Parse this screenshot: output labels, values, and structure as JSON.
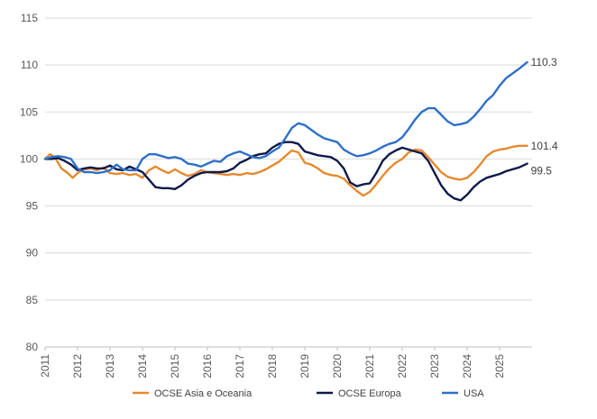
{
  "chart_data": {
    "type": "line",
    "title": "",
    "xlabel": "",
    "ylabel": "",
    "ylim": [
      80,
      115
    ],
    "xlim": [
      2011.0,
      2026.0
    ],
    "yticks": [
      "80",
      "85",
      "90",
      "95",
      "100",
      "105",
      "110",
      "115"
    ],
    "xticks": [
      "2011",
      "2012",
      "2013",
      "2014",
      "2015",
      "2016",
      "2017",
      "2018",
      "2019",
      "2020",
      "2021",
      "2022",
      "2023",
      "2024",
      "2025"
    ],
    "grid": "horizontal",
    "legend_position": "bottom",
    "series": [
      {
        "name": "OCSE Asia e Oceania",
        "color": "#e6892e",
        "end_label": "101.4",
        "x": [
          2011.0,
          2011.15,
          2011.3,
          2011.5,
          2011.7,
          2011.85,
          2012.0,
          2012.2,
          2012.4,
          2012.6,
          2012.8,
          2013.0,
          2013.2,
          2013.4,
          2013.6,
          2013.8,
          2014.0,
          2014.2,
          2014.4,
          2014.6,
          2014.8,
          2015.0,
          2015.2,
          2015.4,
          2015.6,
          2015.8,
          2016.0,
          2016.2,
          2016.4,
          2016.6,
          2016.8,
          2017.0,
          2017.2,
          2017.4,
          2017.6,
          2017.8,
          2018.0,
          2018.2,
          2018.4,
          2018.6,
          2018.8,
          2019.0,
          2019.2,
          2019.4,
          2019.6,
          2019.8,
          2020.0,
          2020.2,
          2020.4,
          2020.6,
          2020.8,
          2021.0,
          2021.2,
          2021.4,
          2021.6,
          2021.8,
          2022.0,
          2022.2,
          2022.4,
          2022.6,
          2022.8,
          2023.0,
          2023.2,
          2023.4,
          2023.6,
          2023.8,
          2024.0,
          2024.2,
          2024.4,
          2024.6,
          2024.8,
          2025.0,
          2025.2,
          2025.4,
          2025.6,
          2025.85
        ],
        "values": [
          100.0,
          100.5,
          100.2,
          99.0,
          98.5,
          98.0,
          98.5,
          98.9,
          99.0,
          98.8,
          99.1,
          98.5,
          98.4,
          98.5,
          98.3,
          98.4,
          98.0,
          98.8,
          99.2,
          98.8,
          98.5,
          98.9,
          98.5,
          98.2,
          98.4,
          98.8,
          98.6,
          98.5,
          98.4,
          98.3,
          98.4,
          98.3,
          98.5,
          98.4,
          98.6,
          98.9,
          99.3,
          99.7,
          100.3,
          100.9,
          100.7,
          99.6,
          99.4,
          99.0,
          98.5,
          98.3,
          98.2,
          97.9,
          97.2,
          96.6,
          96.1,
          96.5,
          97.3,
          98.2,
          99.0,
          99.6,
          100.0,
          100.7,
          101.0,
          100.9,
          100.2,
          99.4,
          98.6,
          98.1,
          97.9,
          97.8,
          98.0,
          98.6,
          99.4,
          100.3,
          100.8,
          101.0,
          101.1,
          101.3,
          101.4,
          101.4
        ]
      },
      {
        "name": "OCSE Europa",
        "color": "#0e1a4a",
        "end_label": "99.5",
        "x": [
          2011.0,
          2011.2,
          2011.4,
          2011.6,
          2011.8,
          2012.0,
          2012.2,
          2012.4,
          2012.6,
          2012.8,
          2013.0,
          2013.2,
          2013.4,
          2013.6,
          2013.8,
          2014.0,
          2014.2,
          2014.4,
          2014.6,
          2014.8,
          2015.0,
          2015.2,
          2015.4,
          2015.6,
          2015.8,
          2016.0,
          2016.2,
          2016.4,
          2016.6,
          2016.8,
          2017.0,
          2017.2,
          2017.4,
          2017.6,
          2017.8,
          2018.0,
          2018.2,
          2018.4,
          2018.6,
          2018.8,
          2019.0,
          2019.2,
          2019.4,
          2019.6,
          2019.8,
          2020.0,
          2020.2,
          2020.4,
          2020.6,
          2020.8,
          2021.0,
          2021.2,
          2021.4,
          2021.6,
          2021.8,
          2022.0,
          2022.2,
          2022.4,
          2022.6,
          2022.8,
          2023.0,
          2023.2,
          2023.4,
          2023.6,
          2023.8,
          2024.0,
          2024.2,
          2024.4,
          2024.6,
          2024.8,
          2025.0,
          2025.2,
          2025.4,
          2025.6,
          2025.85
        ],
        "values": [
          100.0,
          100.0,
          100.1,
          99.8,
          99.4,
          98.8,
          99.0,
          99.1,
          99.0,
          99.0,
          99.3,
          98.9,
          98.8,
          99.2,
          98.9,
          98.6,
          97.8,
          97.0,
          96.9,
          96.9,
          96.8,
          97.2,
          97.8,
          98.2,
          98.5,
          98.6,
          98.6,
          98.6,
          98.7,
          99.0,
          99.6,
          99.9,
          100.3,
          100.5,
          100.6,
          101.2,
          101.6,
          101.8,
          101.8,
          101.6,
          100.8,
          100.6,
          100.4,
          100.3,
          100.2,
          99.8,
          99.0,
          97.5,
          97.1,
          97.3,
          97.4,
          98.5,
          99.8,
          100.5,
          100.9,
          101.2,
          101.0,
          100.8,
          100.6,
          99.8,
          98.5,
          97.2,
          96.3,
          95.8,
          95.6,
          96.2,
          97.0,
          97.6,
          98.0,
          98.2,
          98.4,
          98.7,
          98.9,
          99.1,
          99.5
        ]
      },
      {
        "name": "USA",
        "color": "#2e6fc8",
        "end_label": "110.3",
        "x": [
          2011.0,
          2011.2,
          2011.4,
          2011.6,
          2011.8,
          2012.0,
          2012.2,
          2012.4,
          2012.6,
          2012.8,
          2013.0,
          2013.2,
          2013.4,
          2013.6,
          2013.8,
          2014.0,
          2014.2,
          2014.4,
          2014.6,
          2014.8,
          2015.0,
          2015.2,
          2015.4,
          2015.6,
          2015.8,
          2016.0,
          2016.2,
          2016.4,
          2016.6,
          2016.8,
          2017.0,
          2017.2,
          2017.4,
          2017.6,
          2017.8,
          2018.0,
          2018.2,
          2018.4,
          2018.6,
          2018.8,
          2019.0,
          2019.2,
          2019.4,
          2019.6,
          2019.8,
          2020.0,
          2020.2,
          2020.4,
          2020.6,
          2020.8,
          2021.0,
          2021.2,
          2021.4,
          2021.6,
          2021.8,
          2022.0,
          2022.2,
          2022.4,
          2022.6,
          2022.8,
          2023.0,
          2023.2,
          2023.4,
          2023.6,
          2023.8,
          2024.0,
          2024.2,
          2024.4,
          2024.6,
          2024.8,
          2025.0,
          2025.2,
          2025.4,
          2025.6,
          2025.85
        ],
        "values": [
          100.0,
          100.2,
          100.3,
          100.2,
          100.0,
          99.0,
          98.6,
          98.6,
          98.5,
          98.6,
          98.8,
          99.4,
          98.9,
          98.8,
          98.8,
          100.0,
          100.5,
          100.5,
          100.3,
          100.1,
          100.2,
          100.0,
          99.5,
          99.4,
          99.2,
          99.5,
          99.8,
          99.7,
          100.3,
          100.6,
          100.8,
          100.5,
          100.2,
          100.1,
          100.3,
          100.8,
          101.2,
          102.2,
          103.3,
          103.8,
          103.6,
          103.1,
          102.6,
          102.2,
          102.0,
          101.8,
          101.0,
          100.6,
          100.3,
          100.4,
          100.6,
          100.9,
          101.3,
          101.6,
          101.8,
          102.3,
          103.2,
          104.2,
          105.0,
          105.4,
          105.4,
          104.7,
          104.0,
          103.6,
          103.7,
          103.9,
          104.5,
          105.3,
          106.2,
          106.8,
          107.8,
          108.6,
          109.1,
          109.6,
          110.3
        ]
      }
    ]
  }
}
